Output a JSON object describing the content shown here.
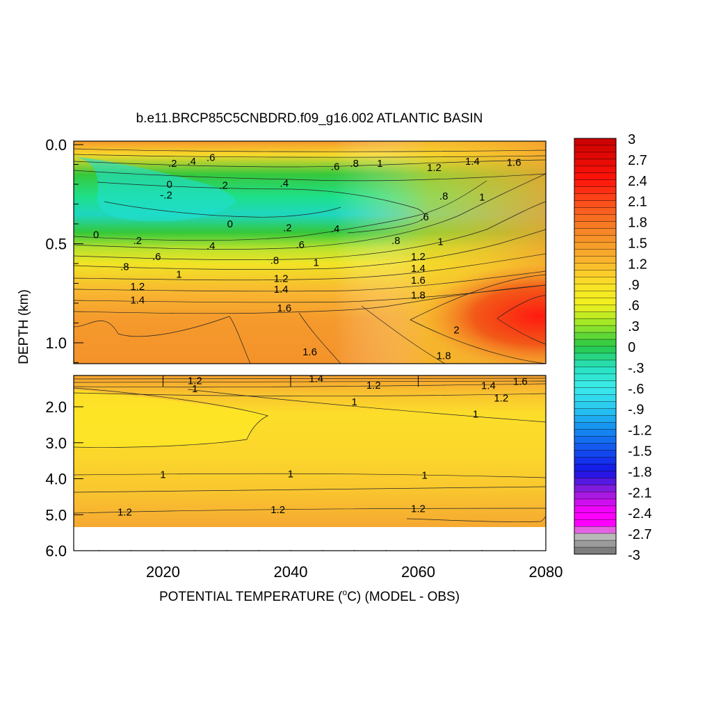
{
  "chart_data": {
    "type": "heatmap",
    "title": "b.e11.BRCP85C5CNBDRD.f09_g16.002 ATLANTIC BASIN",
    "xlabel": "POTENTIAL TEMPERATURE (",
    "xlabel_unit": "o",
    "xlabel_tail": "C) (MODEL - OBS)",
    "ylabel": "DEPTH (km)",
    "x_ticks": [
      "2020",
      "2040",
      "2060",
      "2080"
    ],
    "x_tick_values": [
      2020,
      2040,
      2060,
      2080
    ],
    "xlim": [
      2006,
      2080
    ],
    "upper_panel": {
      "ylim": [
        0.0,
        1.1
      ],
      "y_ticks": [
        "0.0",
        "0.5",
        "1.0"
      ],
      "y_tick_values": [
        0.0,
        0.5,
        1.0
      ]
    },
    "lower_panel": {
      "ylim": [
        1.1,
        6.0
      ],
      "y_ticks": [
        "2.0",
        "3.0",
        "4.0",
        "5.0",
        "6.0"
      ],
      "y_tick_values": [
        2.0,
        3.0,
        4.0,
        5.0,
        6.0
      ],
      "data_bottom_depth": 5.35
    },
    "colorbar": {
      "ticks": [
        "3",
        "2.7",
        "2.4",
        "2.1",
        "1.8",
        "1.5",
        "1.2",
        ".9",
        ".6",
        ".3",
        "0",
        "-.3",
        "-.6",
        "-.9",
        "-1.2",
        "-1.5",
        "-1.8",
        "-2.1",
        "-2.4",
        "-2.7",
        "-3"
      ],
      "min": -3,
      "max": 3,
      "interval": 0.1
    },
    "contour_labels_upper": [
      {
        "text": ".2",
        "x": 2021.5,
        "y": 0.095
      },
      {
        "text": ".4",
        "x": 2024.5,
        "y": 0.085
      },
      {
        "text": ".6",
        "x": 2027.5,
        "y": 0.065
      },
      {
        "text": "0",
        "x": 2021,
        "y": 0.2
      },
      {
        "text": "-.2",
        "x": 2020.5,
        "y": 0.255
      },
      {
        "text": ".2",
        "x": 2029.5,
        "y": 0.205
      },
      {
        "text": ".4",
        "x": 2039,
        "y": 0.195
      },
      {
        "text": ".6",
        "x": 2047,
        "y": 0.11
      },
      {
        "text": ".8",
        "x": 2050,
        "y": 0.095
      },
      {
        "text": "1",
        "x": 2054,
        "y": 0.095
      },
      {
        "text": "1.2",
        "x": 2062.5,
        "y": 0.115
      },
      {
        "text": "1.4",
        "x": 2068.5,
        "y": 0.085
      },
      {
        "text": "1.6",
        "x": 2075,
        "y": 0.09
      },
      {
        "text": ".8",
        "x": 2064,
        "y": 0.26
      },
      {
        "text": "1",
        "x": 2070,
        "y": 0.265
      },
      {
        "text": ".6",
        "x": 2061,
        "y": 0.365
      },
      {
        "text": "0",
        "x": 2030.5,
        "y": 0.4
      },
      {
        "text": ".2",
        "x": 2039.5,
        "y": 0.42
      },
      {
        "text": ".4",
        "x": 2047,
        "y": 0.425
      },
      {
        "text": "0",
        "x": 2009.5,
        "y": 0.455
      },
      {
        "text": ".2",
        "x": 2016,
        "y": 0.485
      },
      {
        "text": ".4",
        "x": 2027.5,
        "y": 0.51
      },
      {
        "text": ".6",
        "x": 2041.5,
        "y": 0.505
      },
      {
        "text": ".8",
        "x": 2056.5,
        "y": 0.485
      },
      {
        "text": "1",
        "x": 2063.5,
        "y": 0.49
      },
      {
        "text": ".6",
        "x": 2019,
        "y": 0.565
      },
      {
        "text": ".8",
        "x": 2037.5,
        "y": 0.585
      },
      {
        "text": "1",
        "x": 2044,
        "y": 0.595
      },
      {
        "text": "1.2",
        "x": 2060,
        "y": 0.565
      },
      {
        "text": ".8",
        "x": 2014,
        "y": 0.615
      },
      {
        "text": "1.4",
        "x": 2060,
        "y": 0.625
      },
      {
        "text": "1",
        "x": 2022.5,
        "y": 0.655
      },
      {
        "text": "1.2",
        "x": 2038.5,
        "y": 0.675
      },
      {
        "text": "1.6",
        "x": 2060,
        "y": 0.685
      },
      {
        "text": "1.2",
        "x": 2016,
        "y": 0.715
      },
      {
        "text": "1.4",
        "x": 2038.5,
        "y": 0.73
      },
      {
        "text": "1.8",
        "x": 2060,
        "y": 0.76
      },
      {
        "text": "1.4",
        "x": 2016,
        "y": 0.785
      },
      {
        "text": "1.6",
        "x": 2039,
        "y": 0.825
      },
      {
        "text": "2",
        "x": 2066,
        "y": 0.935
      },
      {
        "text": "1.6",
        "x": 2043,
        "y": 1.045
      },
      {
        "text": "1.8",
        "x": 2064,
        "y": 1.065
      }
    ],
    "contour_labels_lower": [
      {
        "text": "1.2",
        "x": 2025,
        "y": 1.28
      },
      {
        "text": "1",
        "x": 2025,
        "y": 1.5
      },
      {
        "text": "1.4",
        "x": 2044,
        "y": 1.22
      },
      {
        "text": "1.2",
        "x": 2053,
        "y": 1.4
      },
      {
        "text": "1.4",
        "x": 2071,
        "y": 1.41
      },
      {
        "text": "1.6",
        "x": 2076,
        "y": 1.29
      },
      {
        "text": "1.2",
        "x": 2073,
        "y": 1.76
      },
      {
        "text": "1",
        "x": 2050,
        "y": 1.86
      },
      {
        "text": "1",
        "x": 2069,
        "y": 2.2
      },
      {
        "text": "1",
        "x": 2020,
        "y": 3.88
      },
      {
        "text": "1",
        "x": 2040,
        "y": 3.86
      },
      {
        "text": "1",
        "x": 2061,
        "y": 3.9
      },
      {
        "text": "1.2",
        "x": 2014,
        "y": 4.93
      },
      {
        "text": "1.2",
        "x": 2038,
        "y": 4.86
      },
      {
        "text": "1.2",
        "x": 2060,
        "y": 4.83
      }
    ],
    "legend": "right"
  }
}
